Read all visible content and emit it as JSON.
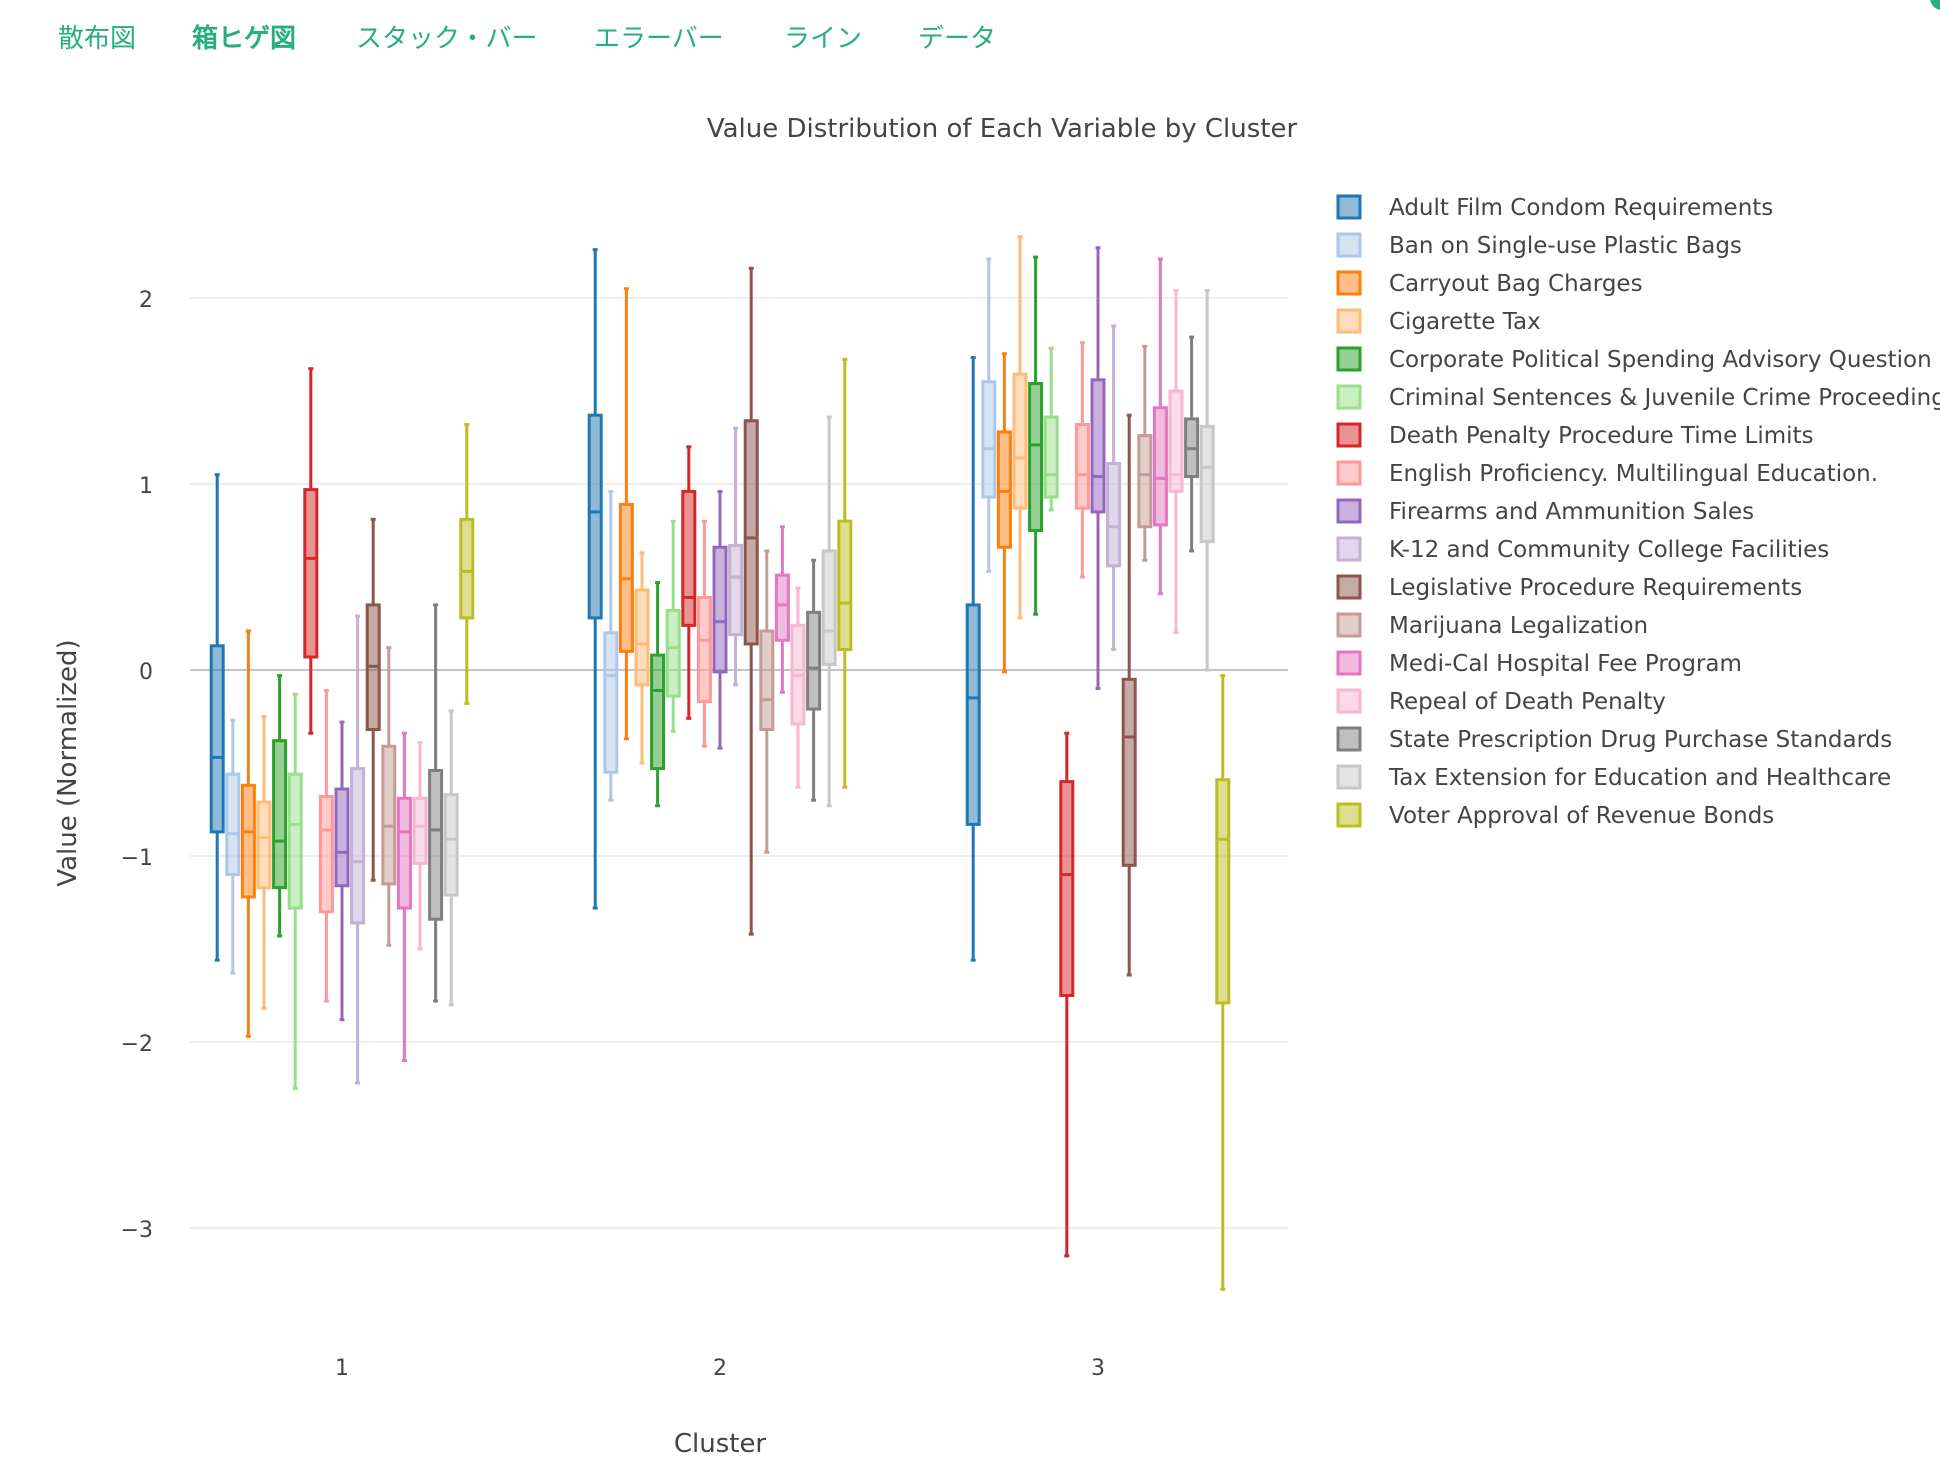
{
  "tabs": [
    {
      "label": "散布図",
      "active": false
    },
    {
      "label": "箱ヒゲ図",
      "active": true
    },
    {
      "label": "スタック・バー",
      "active": false
    },
    {
      "label": "エラーバー",
      "active": false
    },
    {
      "label": "ライン",
      "active": false
    },
    {
      "label": "データ",
      "active": false
    }
  ],
  "accent_color": "#27ae7a",
  "chart_data": {
    "type": "box",
    "title": "Value Distribution of Each Variable by Cluster",
    "xlabel": "Cluster",
    "ylabel": "Value (Normalized)",
    "categories": [
      "1",
      "2",
      "3"
    ],
    "ylim": [
      -3.5,
      2.5
    ],
    "yticks": [
      2,
      1,
      0,
      -1,
      -2,
      -3
    ],
    "ytick_labels": [
      "2",
      "1",
      "0",
      "−1",
      "−2",
      "−3"
    ],
    "grid": true,
    "legend_position": "right",
    "series": [
      {
        "name": "Adult Film Condom Requirements",
        "color": "#1f77b4",
        "boxes": [
          {
            "min": -1.56,
            "q1": -0.87,
            "median": -0.47,
            "q3": 0.13,
            "max": 1.05
          },
          {
            "min": -1.28,
            "q1": 0.28,
            "median": 0.85,
            "q3": 1.37,
            "max": 2.26
          },
          {
            "min": -1.56,
            "q1": -0.83,
            "median": -0.15,
            "q3": 0.35,
            "max": 1.68
          }
        ]
      },
      {
        "name": "Ban on Single-use Plastic Bags",
        "color": "#aec7e8",
        "boxes": [
          {
            "min": -1.63,
            "q1": -1.1,
            "median": -0.88,
            "q3": -0.56,
            "max": -0.27
          },
          {
            "min": -0.7,
            "q1": -0.55,
            "median": -0.03,
            "q3": 0.2,
            "max": 0.96
          },
          {
            "min": 0.53,
            "q1": 0.93,
            "median": 1.19,
            "q3": 1.55,
            "max": 2.21
          }
        ]
      },
      {
        "name": "Carryout Bag Charges",
        "color": "#ff7f0e",
        "boxes": [
          {
            "min": -1.97,
            "q1": -1.22,
            "median": -0.87,
            "q3": -0.62,
            "max": 0.21
          },
          {
            "min": -0.37,
            "q1": 0.1,
            "median": 0.49,
            "q3": 0.89,
            "max": 2.05
          },
          {
            "min": -0.01,
            "q1": 0.66,
            "median": 0.96,
            "q3": 1.28,
            "max": 1.7
          }
        ]
      },
      {
        "name": "Cigarette Tax",
        "color": "#ffbb78",
        "boxes": [
          {
            "min": -1.82,
            "q1": -1.17,
            "median": -0.9,
            "q3": -0.71,
            "max": -0.25
          },
          {
            "min": -0.5,
            "q1": -0.08,
            "median": 0.14,
            "q3": 0.43,
            "max": 0.63
          },
          {
            "min": 0.28,
            "q1": 0.87,
            "median": 1.14,
            "q3": 1.59,
            "max": 2.33
          }
        ]
      },
      {
        "name": "Corporate Political Spending Advisory Question",
        "color": "#2ca02c",
        "boxes": [
          {
            "min": -1.43,
            "q1": -1.17,
            "median": -0.92,
            "q3": -0.38,
            "max": -0.03
          },
          {
            "min": -0.73,
            "q1": -0.53,
            "median": -0.11,
            "q3": 0.08,
            "max": 0.47
          },
          {
            "min": 0.3,
            "q1": 0.75,
            "median": 1.21,
            "q3": 1.54,
            "max": 2.22
          }
        ]
      },
      {
        "name": "Criminal Sentences & Juvenile Crime Proceedings",
        "color": "#98df8a",
        "boxes": [
          {
            "min": -2.25,
            "q1": -1.28,
            "median": -0.83,
            "q3": -0.56,
            "max": -0.13
          },
          {
            "min": -0.33,
            "q1": -0.14,
            "median": 0.12,
            "q3": 0.32,
            "max": 0.8
          },
          {
            "min": 0.86,
            "q1": 0.93,
            "median": 1.05,
            "q3": 1.36,
            "max": 1.73
          }
        ]
      },
      {
        "name": "Death Penalty Procedure Time Limits",
        "color": "#d62728",
        "boxes": [
          {
            "min": -0.34,
            "q1": 0.07,
            "median": 0.6,
            "q3": 0.97,
            "max": 1.62
          },
          {
            "min": -0.26,
            "q1": 0.24,
            "median": 0.39,
            "q3": 0.96,
            "max": 1.2
          },
          {
            "min": -3.15,
            "q1": -1.75,
            "median": -1.1,
            "q3": -0.6,
            "max": -0.34
          }
        ]
      },
      {
        "name": "English Proficiency. Multilingual Education.",
        "color": "#ff9896",
        "boxes": [
          {
            "min": -1.78,
            "q1": -1.3,
            "median": -0.86,
            "q3": -0.68,
            "max": -0.11
          },
          {
            "min": -0.41,
            "q1": -0.17,
            "median": 0.16,
            "q3": 0.39,
            "max": 0.8
          },
          {
            "min": 0.5,
            "q1": 0.87,
            "median": 1.05,
            "q3": 1.32,
            "max": 1.76
          }
        ]
      },
      {
        "name": "Firearms and Ammunition Sales",
        "color": "#9467bd",
        "boxes": [
          {
            "min": -1.88,
            "q1": -1.16,
            "median": -0.98,
            "q3": -0.64,
            "max": -0.28
          },
          {
            "min": -0.42,
            "q1": -0.01,
            "median": 0.26,
            "q3": 0.66,
            "max": 0.96
          },
          {
            "min": -0.1,
            "q1": 0.85,
            "median": 1.04,
            "q3": 1.56,
            "max": 2.27
          }
        ]
      },
      {
        "name": "K-12 and Community College Facilities",
        "color": "#c5b0d5",
        "boxes": [
          {
            "min": -2.22,
            "q1": -1.36,
            "median": -1.03,
            "q3": -0.53,
            "max": 0.29
          },
          {
            "min": -0.08,
            "q1": 0.19,
            "median": 0.5,
            "q3": 0.67,
            "max": 1.3
          },
          {
            "min": 0.11,
            "q1": 0.56,
            "median": 0.77,
            "q3": 1.11,
            "max": 1.85
          }
        ]
      },
      {
        "name": "Legislative Procedure Requirements",
        "color": "#8c564b",
        "boxes": [
          {
            "min": -1.13,
            "q1": -0.32,
            "median": 0.02,
            "q3": 0.35,
            "max": 0.81
          },
          {
            "min": -1.42,
            "q1": 0.14,
            "median": 0.71,
            "q3": 1.34,
            "max": 2.16
          },
          {
            "min": -1.64,
            "q1": -1.05,
            "median": -0.36,
            "q3": -0.05,
            "max": 1.37
          }
        ]
      },
      {
        "name": "Marijuana Legalization",
        "color": "#c49c94",
        "boxes": [
          {
            "min": -1.48,
            "q1": -1.15,
            "median": -0.84,
            "q3": -0.41,
            "max": 0.12
          },
          {
            "min": -0.98,
            "q1": -0.32,
            "median": -0.16,
            "q3": 0.21,
            "max": 0.64
          },
          {
            "min": 0.59,
            "q1": 0.77,
            "median": 1.05,
            "q3": 1.26,
            "max": 1.74
          }
        ]
      },
      {
        "name": "Medi-Cal Hospital Fee Program",
        "color": "#e377c2",
        "boxes": [
          {
            "min": -2.1,
            "q1": -1.28,
            "median": -0.87,
            "q3": -0.69,
            "max": -0.34
          },
          {
            "min": -0.12,
            "q1": 0.16,
            "median": 0.35,
            "q3": 0.51,
            "max": 0.77
          },
          {
            "min": 0.41,
            "q1": 0.78,
            "median": 1.03,
            "q3": 1.41,
            "max": 2.21
          }
        ]
      },
      {
        "name": "Repeal of Death Penalty",
        "color": "#f7b6d2",
        "boxes": [
          {
            "min": -1.5,
            "q1": -1.04,
            "median": -0.84,
            "q3": -0.69,
            "max": -0.39
          },
          {
            "min": -0.63,
            "q1": -0.29,
            "median": -0.03,
            "q3": 0.24,
            "max": 0.44
          },
          {
            "min": 0.2,
            "q1": 0.96,
            "median": 1.05,
            "q3": 1.5,
            "max": 2.04
          }
        ]
      },
      {
        "name": "State Prescription Drug Purchase Standards",
        "color": "#7f7f7f",
        "boxes": [
          {
            "min": -1.78,
            "q1": -1.34,
            "median": -0.86,
            "q3": -0.54,
            "max": 0.35
          },
          {
            "min": -0.7,
            "q1": -0.21,
            "median": 0.01,
            "q3": 0.31,
            "max": 0.59
          },
          {
            "min": 0.64,
            "q1": 1.04,
            "median": 1.19,
            "q3": 1.35,
            "max": 1.79
          }
        ]
      },
      {
        "name": "Tax Extension for Education and Healthcare",
        "color": "#c7c7c7",
        "boxes": [
          {
            "min": -1.8,
            "q1": -1.21,
            "median": -0.91,
            "q3": -0.67,
            "max": -0.22
          },
          {
            "min": -0.73,
            "q1": 0.03,
            "median": 0.21,
            "q3": 0.64,
            "max": 1.36
          },
          {
            "min": 0.0,
            "q1": 0.69,
            "median": 1.09,
            "q3": 1.31,
            "max": 2.04
          }
        ]
      },
      {
        "name": "Voter Approval of Revenue Bonds",
        "color": "#bcbd22",
        "boxes": [
          {
            "min": -0.18,
            "q1": 0.28,
            "median": 0.53,
            "q3": 0.81,
            "max": 1.32
          },
          {
            "min": -0.63,
            "q1": 0.11,
            "median": 0.36,
            "q3": 0.8,
            "max": 1.67
          },
          {
            "min": -3.33,
            "q1": -1.79,
            "median": -0.91,
            "q3": -0.59,
            "max": -0.03
          }
        ]
      }
    ]
  }
}
